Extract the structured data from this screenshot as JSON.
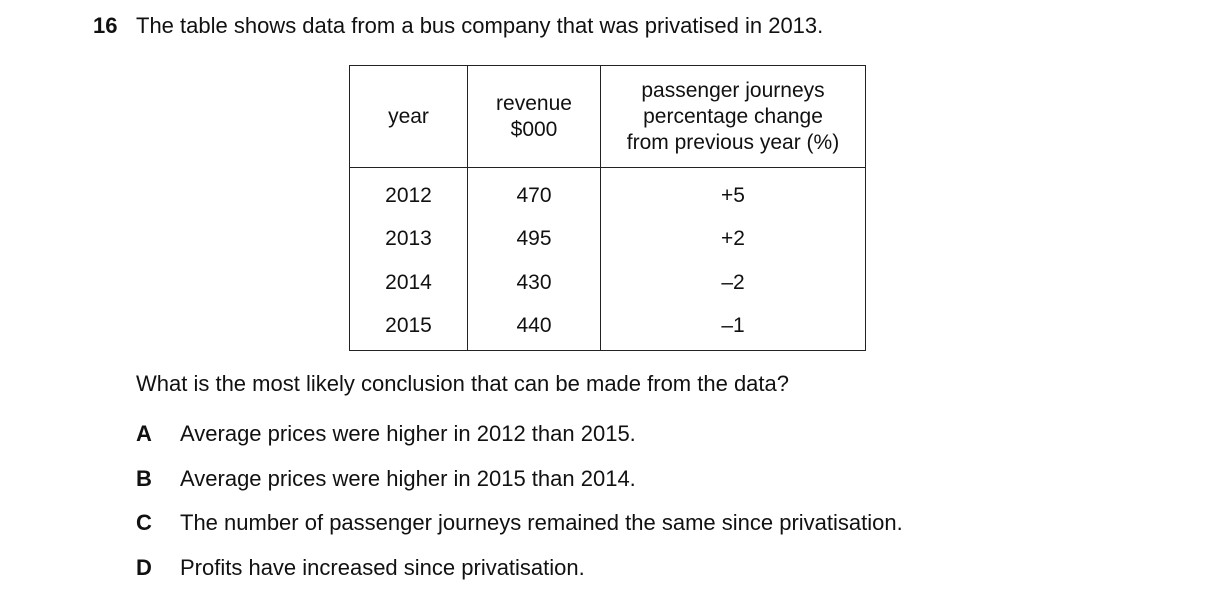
{
  "question": {
    "number": "16",
    "stem": "The table shows data from a bus company that was privatised in 2013.",
    "prompt": "What is the most likely conclusion that can be made from the data?"
  },
  "table": {
    "headers": [
      [
        "year"
      ],
      [
        "revenue",
        "$000"
      ],
      [
        "passenger journeys",
        "percentage change",
        "from previous year (%)"
      ]
    ],
    "rows": [
      [
        "2012",
        "470",
        "+5"
      ],
      [
        "2013",
        "495",
        "+2"
      ],
      [
        "2014",
        "430",
        "–2"
      ],
      [
        "2015",
        "440",
        "–1"
      ]
    ]
  },
  "options": [
    {
      "letter": "A",
      "text": "Average prices were higher in 2012 than 2015."
    },
    {
      "letter": "B",
      "text": "Average prices were higher in 2015 than 2014."
    },
    {
      "letter": "C",
      "text": "The number of passenger journeys remained the same since privatisation."
    },
    {
      "letter": "D",
      "text": "Profits have increased since privatisation."
    }
  ]
}
